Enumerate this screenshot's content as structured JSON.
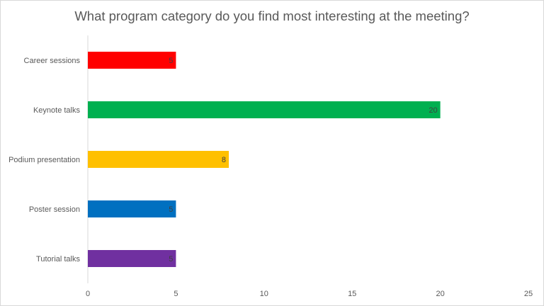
{
  "chart_data": {
    "type": "bar",
    "orientation": "horizontal",
    "title": "What program category do you find most interesting at the meeting?",
    "categories": [
      "Career sessions",
      "Keynote talks",
      "Podium presentation",
      "Poster session",
      "Tutorial talks"
    ],
    "values": [
      5,
      20,
      8,
      5,
      5
    ],
    "colors": [
      "#ff0000",
      "#00b050",
      "#ffc000",
      "#0070c0",
      "#7030a0"
    ],
    "xlim": [
      0,
      25
    ],
    "xticks": [
      0,
      5,
      10,
      15,
      20,
      25
    ],
    "grid": false,
    "legend": "none",
    "data_labels": true
  }
}
